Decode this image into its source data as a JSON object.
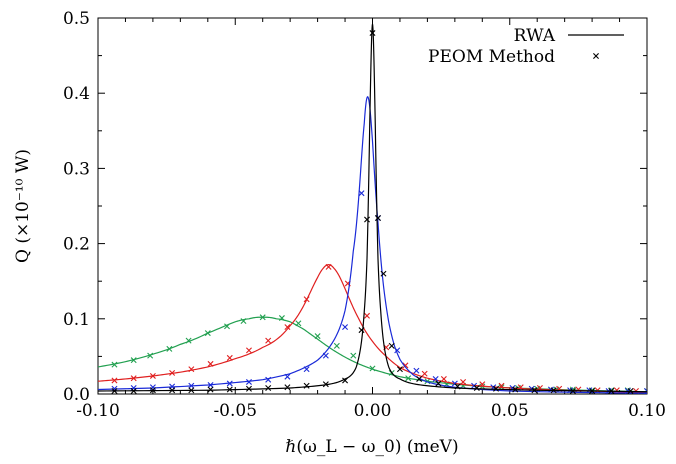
{
  "chart_data": {
    "type": "line",
    "xlabel": "ℏ(ω_L − ω_0) (meV)",
    "ylabel": "Q (×10⁻¹⁰ W)",
    "xlim": [
      -0.1,
      0.1
    ],
    "ylim": [
      0,
      0.5
    ],
    "x_ticks": [
      "-0.10",
      "-0.05",
      "0.00",
      "0.05",
      "0.10"
    ],
    "y_ticks": [
      "0.0",
      "0.1",
      "0.2",
      "0.3",
      "0.4",
      "0.5"
    ],
    "grid": false,
    "legend": {
      "position": "top-right",
      "entries": [
        {
          "label": "RWA",
          "style": "line"
        },
        {
          "label": "PEOM Method",
          "style": "cross-marker"
        }
      ]
    },
    "series": [
      {
        "color": "#22a050",
        "peak_x": -0.04,
        "peak_y": 0.102,
        "hwhm": 0.026,
        "line_x": [
          -0.1,
          -0.09,
          -0.08,
          -0.07,
          -0.06,
          -0.05,
          -0.045,
          -0.04,
          -0.035,
          -0.03,
          -0.025,
          -0.02,
          -0.015,
          -0.01,
          -0.005,
          0.0,
          0.01,
          0.02,
          0.04,
          0.06,
          0.1
        ],
        "line_y": [
          0.036,
          0.043,
          0.053,
          0.066,
          0.081,
          0.096,
          0.1,
          0.102,
          0.1,
          0.096,
          0.086,
          0.073,
          0.06,
          0.049,
          0.04,
          0.033,
          0.023,
          0.017,
          0.01,
          0.007,
          0.003
        ],
        "markers_x": [
          -0.094,
          -0.087,
          -0.081,
          -0.074,
          -0.067,
          -0.06,
          -0.053,
          -0.047,
          -0.04,
          -0.033,
          -0.027,
          -0.02,
          -0.013,
          -0.007,
          0.0,
          0.007,
          0.013,
          0.02,
          0.027,
          0.033,
          0.04,
          0.047,
          0.053,
          0.06,
          0.067,
          0.073,
          0.08,
          0.087,
          0.093,
          0.1
        ],
        "markers_y": [
          0.039,
          0.045,
          0.051,
          0.06,
          0.071,
          0.081,
          0.09,
          0.097,
          0.102,
          0.101,
          0.094,
          0.077,
          0.064,
          0.051,
          0.034,
          0.028,
          0.021,
          0.017,
          0.013,
          0.011,
          0.01,
          0.009,
          0.008,
          0.007,
          0.006,
          0.006,
          0.005,
          0.005,
          0.005,
          0.004
        ]
      },
      {
        "color": "#e02020",
        "peak_x": -0.016,
        "peak_y": 0.172,
        "hwhm": 0.011,
        "line_x": [
          -0.1,
          -0.09,
          -0.08,
          -0.07,
          -0.06,
          -0.05,
          -0.04,
          -0.03,
          -0.025,
          -0.02,
          -0.018,
          -0.016,
          -0.014,
          -0.012,
          -0.01,
          -0.008,
          -0.005,
          0.0,
          0.005,
          0.01,
          0.02,
          0.03,
          0.05,
          0.1
        ],
        "line_y": [
          0.017,
          0.02,
          0.024,
          0.029,
          0.036,
          0.047,
          0.062,
          0.091,
          0.118,
          0.155,
          0.167,
          0.172,
          0.167,
          0.156,
          0.14,
          0.123,
          0.1,
          0.07,
          0.05,
          0.035,
          0.021,
          0.014,
          0.008,
          0.002
        ],
        "markers_x": [
          -0.094,
          -0.087,
          -0.08,
          -0.073,
          -0.066,
          -0.059,
          -0.052,
          -0.045,
          -0.038,
          -0.031,
          -0.024,
          -0.016,
          -0.009,
          -0.002,
          0.005,
          0.012,
          0.019,
          0.026,
          0.033,
          0.04,
          0.047,
          0.054,
          0.061,
          0.068,
          0.075,
          0.082,
          0.089,
          0.096
        ],
        "markers_y": [
          0.018,
          0.021,
          0.024,
          0.028,
          0.033,
          0.04,
          0.048,
          0.058,
          0.071,
          0.089,
          0.126,
          0.169,
          0.147,
          0.104,
          0.062,
          0.038,
          0.027,
          0.02,
          0.016,
          0.013,
          0.011,
          0.009,
          0.008,
          0.007,
          0.006,
          0.005,
          0.005,
          0.004
        ]
      },
      {
        "color": "#1a2ad8",
        "peak_x": -0.002,
        "peak_y": 0.394,
        "hwhm": 0.0038,
        "line_x": [
          -0.1,
          -0.08,
          -0.06,
          -0.04,
          -0.03,
          -0.02,
          -0.015,
          -0.01,
          -0.007,
          -0.005,
          -0.003,
          -0.002,
          -0.001,
          0.0,
          0.002,
          0.004,
          0.006,
          0.008,
          0.01,
          0.015,
          0.02,
          0.03,
          0.05,
          0.1
        ],
        "line_y": [
          0.006,
          0.008,
          0.012,
          0.019,
          0.027,
          0.045,
          0.066,
          0.111,
          0.19,
          0.262,
          0.36,
          0.394,
          0.382,
          0.336,
          0.228,
          0.144,
          0.094,
          0.064,
          0.046,
          0.025,
          0.016,
          0.009,
          0.004,
          0.001
        ],
        "markers_x": [
          -0.094,
          -0.087,
          -0.08,
          -0.073,
          -0.066,
          -0.059,
          -0.052,
          -0.045,
          -0.038,
          -0.031,
          -0.024,
          -0.017,
          -0.01,
          -0.004,
          0.002,
          0.009,
          0.016,
          0.023,
          0.03,
          0.037,
          0.044,
          0.051,
          0.058,
          0.065,
          0.072,
          0.079,
          0.086,
          0.093,
          0.1
        ],
        "markers_y": [
          0.007,
          0.008,
          0.009,
          0.01,
          0.011,
          0.012,
          0.014,
          0.016,
          0.019,
          0.023,
          0.033,
          0.051,
          0.089,
          0.267,
          0.234,
          0.058,
          0.031,
          0.02,
          0.014,
          0.011,
          0.009,
          0.008,
          0.007,
          0.006,
          0.005,
          0.005,
          0.004,
          0.004,
          0.004
        ]
      },
      {
        "color": "#000000",
        "peak_x": 0.0,
        "peak_y": 0.492,
        "hwhm": 0.0016,
        "line_x": [
          -0.1,
          -0.06,
          -0.03,
          -0.02,
          -0.01,
          -0.006,
          -0.004,
          -0.003,
          -0.002,
          -0.001,
          0.0,
          0.001,
          0.002,
          0.003,
          0.004,
          0.006,
          0.01,
          0.02,
          0.03,
          0.06,
          0.1
        ],
        "line_y": [
          0.004,
          0.005,
          0.008,
          0.011,
          0.02,
          0.035,
          0.07,
          0.11,
          0.18,
          0.36,
          0.492,
          0.36,
          0.18,
          0.11,
          0.07,
          0.035,
          0.02,
          0.011,
          0.008,
          0.005,
          0.003
        ],
        "markers_x": [
          -0.094,
          -0.087,
          -0.08,
          -0.073,
          -0.066,
          -0.059,
          -0.052,
          -0.045,
          -0.038,
          -0.031,
          -0.024,
          -0.017,
          -0.01,
          -0.004,
          -0.002,
          0.0,
          0.002,
          0.004,
          0.007,
          0.01,
          0.017,
          0.024,
          0.031,
          0.038,
          0.045,
          0.052,
          0.059,
          0.066,
          0.073,
          0.08,
          0.087,
          0.094
        ],
        "markers_y": [
          0.004,
          0.004,
          0.005,
          0.005,
          0.005,
          0.006,
          0.006,
          0.007,
          0.008,
          0.009,
          0.011,
          0.013,
          0.018,
          0.085,
          0.232,
          0.48,
          0.234,
          0.16,
          0.064,
          0.033,
          0.02,
          0.014,
          0.01,
          0.008,
          0.007,
          0.006,
          0.005,
          0.005,
          0.004,
          0.004,
          0.004,
          0.004
        ]
      }
    ]
  }
}
